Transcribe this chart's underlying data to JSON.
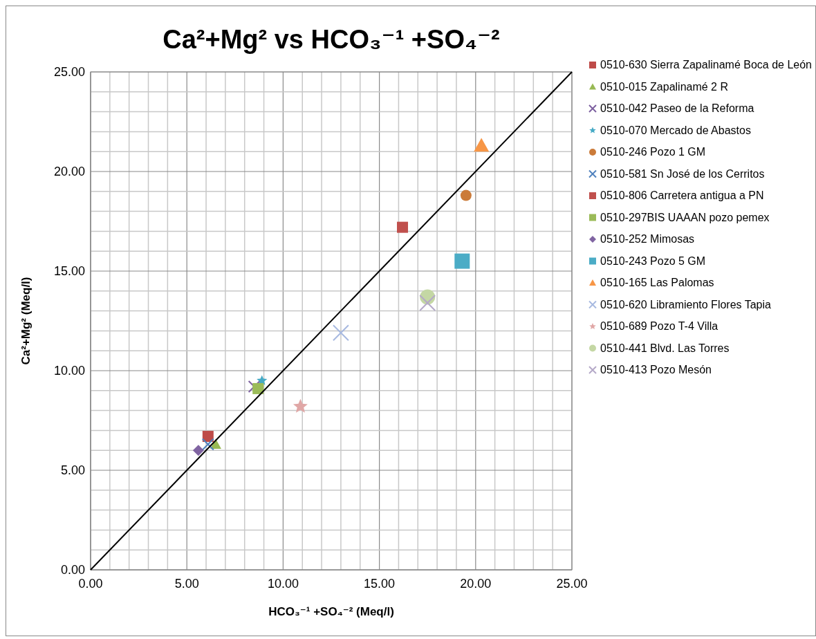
{
  "chart_data": {
    "type": "scatter",
    "title": "Ca²+Mg² vs HCO₃⁻¹ +SO₄⁻²",
    "xlabel": "HCO₃⁻¹ +SO₄⁻² (Meq/l)",
    "ylabel": "Ca²+Mg² (Meq/l)",
    "xlim": [
      0,
      25
    ],
    "ylim": [
      0,
      25
    ],
    "xticks": [
      {
        "value": 0,
        "label": "0.00"
      },
      {
        "value": 1,
        "label": null
      },
      {
        "value": 2,
        "label": null
      },
      {
        "value": 3,
        "label": null
      },
      {
        "value": 4,
        "label": null
      },
      {
        "value": 5,
        "label": "5.00"
      },
      {
        "value": 6,
        "label": null
      },
      {
        "value": 7,
        "label": null
      },
      {
        "value": 8,
        "label": null
      },
      {
        "value": 9,
        "label": null
      },
      {
        "value": 10,
        "label": "10.00"
      },
      {
        "value": 11,
        "label": null
      },
      {
        "value": 12,
        "label": null
      },
      {
        "value": 13,
        "label": null
      },
      {
        "value": 14,
        "label": null
      },
      {
        "value": 15,
        "label": "15.00"
      },
      {
        "value": 16,
        "label": null
      },
      {
        "value": 17,
        "label": null
      },
      {
        "value": 18,
        "label": null
      },
      {
        "value": 19,
        "label": null
      },
      {
        "value": 20,
        "label": "20.00"
      },
      {
        "value": 21,
        "label": null
      },
      {
        "value": 22,
        "label": null
      },
      {
        "value": 23,
        "label": null
      },
      {
        "value": 24,
        "label": null
      },
      {
        "value": 25,
        "label": "25.00"
      }
    ],
    "yticks": [
      {
        "value": 0,
        "label": "0.00"
      },
      {
        "value": 1,
        "label": null
      },
      {
        "value": 2,
        "label": null
      },
      {
        "value": 3,
        "label": null
      },
      {
        "value": 4,
        "label": null
      },
      {
        "value": 5,
        "label": "5.00"
      },
      {
        "value": 6,
        "label": null
      },
      {
        "value": 7,
        "label": null
      },
      {
        "value": 8,
        "label": null
      },
      {
        "value": 9,
        "label": null
      },
      {
        "value": 10,
        "label": "10.00"
      },
      {
        "value": 11,
        "label": null
      },
      {
        "value": 12,
        "label": null
      },
      {
        "value": 13,
        "label": null
      },
      {
        "value": 14,
        "label": null
      },
      {
        "value": 15,
        "label": "15.00"
      },
      {
        "value": 16,
        "label": null
      },
      {
        "value": 17,
        "label": null
      },
      {
        "value": 18,
        "label": null
      },
      {
        "value": 19,
        "label": null
      },
      {
        "value": 20,
        "label": "20.00"
      },
      {
        "value": 21,
        "label": null
      },
      {
        "value": 22,
        "label": null
      },
      {
        "value": 23,
        "label": null
      },
      {
        "value": 24,
        "label": null
      },
      {
        "value": 25,
        "label": "25.00"
      }
    ],
    "grid": true,
    "legend": "right",
    "series": [
      {
        "name": "0510-630 Sierra Zapalinamé Boca de León",
        "color": "#be4b48",
        "marker": "square",
        "x": [
          6.1
        ],
        "values": [
          6.7
        ]
      },
      {
        "name": "0510-015 Zapalinamé 2 R",
        "color": "#98b954",
        "marker": "triangle",
        "x": [
          6.5
        ],
        "values": [
          6.3
        ]
      },
      {
        "name": "0510-042 Paseo de la Reforma",
        "color": "#7d60a0",
        "marker": "cross",
        "x": [
          8.5
        ],
        "values": [
          9.2
        ]
      },
      {
        "name": "0510-070 Mercado de Abastos",
        "color": "#46aac5",
        "marker": "star",
        "x": [
          8.9
        ],
        "values": [
          9.5
        ]
      },
      {
        "name": "0510-246 Pozo 1 GM",
        "color": "#cb7b39",
        "marker": "circle",
        "x": [
          19.5
        ],
        "values": [
          18.8
        ]
      },
      {
        "name": "0510-581 Sn José de los Cerritos",
        "color": "#4f81bd",
        "marker": "cross",
        "x": [
          6.1
        ],
        "values": [
          6.3
        ]
      },
      {
        "name": "0510-806 Carretera antigua a PN",
        "color": "#c0504d",
        "marker": "square",
        "x": [
          16.2
        ],
        "values": [
          17.2
        ]
      },
      {
        "name": "0510-297BIS UAAAN pozo pemex",
        "color": "#9bbb59",
        "marker": "square",
        "x": [
          8.7
        ],
        "values": [
          9.1
        ]
      },
      {
        "name": "0510-252 Mimosas",
        "color": "#8064a2",
        "marker": "diamond",
        "x": [
          5.6
        ],
        "values": [
          6.0
        ]
      },
      {
        "name": "0510-243 Pozo 5 GM",
        "color": "#4bacc6",
        "marker": "square",
        "x": [
          19.3
        ],
        "values": [
          15.5
        ]
      },
      {
        "name": "0510-165 Las Palomas",
        "color": "#f79646",
        "marker": "triangle",
        "x": [
          20.3
        ],
        "values": [
          21.3
        ]
      },
      {
        "name": "0510-620 Libramiento Flores Tapia",
        "color": "#a7b9e0",
        "marker": "cross",
        "x": [
          13.0
        ],
        "values": [
          11.9
        ]
      },
      {
        "name": "0510-689 Pozo T-4 Villa",
        "color": "#e0a7a6",
        "marker": "star",
        "x": [
          10.9
        ],
        "values": [
          8.2
        ]
      },
      {
        "name": "0510-441 Blvd. Las Torres",
        "color": "#c4d7a4",
        "marker": "circle",
        "x": [
          17.5
        ],
        "values": [
          13.7
        ]
      },
      {
        "name": "0510-413 Pozo Mesón",
        "color": "#b5a9c8",
        "marker": "cross",
        "x": [
          17.5
        ],
        "values": [
          13.4
        ]
      },
      {
        "type": "line",
        "color": "#000000",
        "marker": "none",
        "x": [
          0,
          25
        ],
        "values": [
          0,
          25
        ]
      }
    ]
  }
}
